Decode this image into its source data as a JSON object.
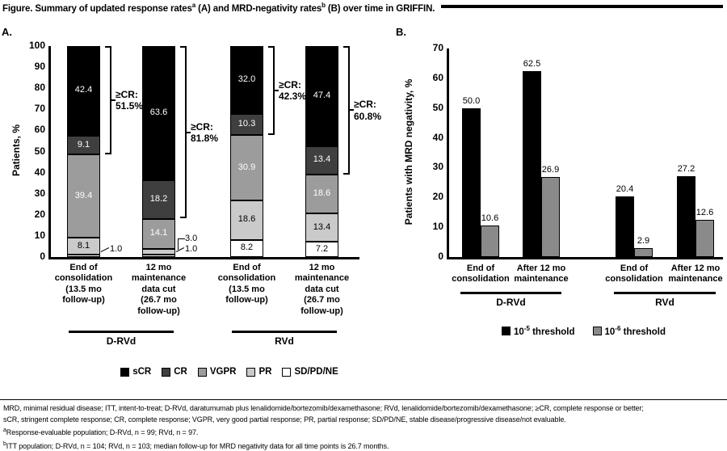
{
  "title": {
    "prefix": "Figure. Summary of updated response rates",
    "sup_a": "a",
    "mid": " (A) and MRD-negativity rates",
    "sup_b": "b",
    "suffix": " (B) over time in GRIFFIN."
  },
  "chart_data": [
    {
      "id": "A",
      "panel_label": "A.",
      "type": "bar",
      "subtype": "stacked-percent",
      "title": "Summary of updated response rates over time in GRIFFIN",
      "xlabel": "",
      "ylabel": "Patients, %",
      "ylim": [
        0,
        100
      ],
      "ytick_step": 10,
      "grid": false,
      "legend_position": "bottom",
      "categories_order_bottom_to_top": [
        "SD/PD/NE",
        "PR",
        "VGPR",
        "CR",
        "sCR"
      ],
      "legend": [
        {
          "name": "sCR",
          "color": "#000000"
        },
        {
          "name": "CR",
          "color": "#3f3f3f"
        },
        {
          "name": "VGPR",
          "color": "#9c9c9c"
        },
        {
          "name": "PR",
          "color": "#cacaca"
        },
        {
          "name": "SD/PD/NE",
          "color": "#ffffff"
        }
      ],
      "label_text_colors": {
        "sCR": "#ffffff",
        "CR": "#ffffff",
        "VGPR": "#ffffff",
        "PR": "#000000",
        "SD/PD/NE": "#000000"
      },
      "groups": [
        {
          "name": "D-RVd",
          "bars": [
            {
              "x_label_lines": [
                "End of",
                "consolidation",
                "(13.5 mo",
                "follow-up)"
              ],
              "segments": {
                "sCR": 42.4,
                "CR": 9.1,
                "VGPR": 39.4,
                "PR": 8.1,
                "SD/PD/NE": 1.0
              },
              "callout_labels": [
                {
                  "segment": "SD/PD/NE",
                  "text": "1.0"
                }
              ],
              "bracket": {
                "title": "≥CR:",
                "value": "51.5%",
                "span_pct": 51.5
              }
            },
            {
              "x_label_lines": [
                "12 mo",
                "maintenance",
                "data cut",
                "(26.7 mo",
                "follow-up)"
              ],
              "segments": {
                "sCR": 63.6,
                "CR": 18.2,
                "VGPR": 14.1,
                "PR": 3.0,
                "SD/PD/NE": 1.0
              },
              "callout_labels": [
                {
                  "segment": "PR",
                  "text": "3.0"
                },
                {
                  "segment": "SD/PD/NE",
                  "text": "1.0"
                }
              ],
              "bracket": {
                "title": "≥CR:",
                "value": "81.8%",
                "span_pct": 81.8
              }
            }
          ]
        },
        {
          "name": "RVd",
          "bars": [
            {
              "x_label_lines": [
                "End of",
                "consolidation",
                "(13.5 mo",
                "follow-up)"
              ],
              "segments": {
                "sCR": 32.0,
                "CR": 10.3,
                "VGPR": 30.9,
                "PR": 18.6,
                "SD/PD/NE": 8.2
              },
              "callout_labels": [],
              "bracket": {
                "title": "≥CR:",
                "value": "42.3%",
                "span_pct": 42.3
              }
            },
            {
              "x_label_lines": [
                "12 mo",
                "maintenance",
                "data cut",
                "(26.7 mo",
                "follow-up)"
              ],
              "segments": {
                "sCR": 47.4,
                "CR": 13.4,
                "VGPR": 18.6,
                "PR": 13.4,
                "SD/PD/NE": 7.2
              },
              "callout_labels": [],
              "bracket": {
                "title": "≥CR:",
                "value": "60.8%",
                "span_pct": 60.8
              }
            }
          ]
        }
      ]
    },
    {
      "id": "B",
      "panel_label": "B.",
      "type": "bar",
      "subtype": "grouped",
      "title": "Summary of updated MRD-negativity rates over time in GRIFFIN",
      "xlabel": "",
      "ylabel": "Patients with MRD negativity, %",
      "ylim": [
        0,
        70
      ],
      "ytick_step": 10,
      "grid": false,
      "legend_position": "bottom",
      "series": [
        {
          "name_base": "10",
          "name_exp": "-5",
          "name_rest": " threshold",
          "color": "#000000"
        },
        {
          "name_base": "10",
          "name_exp": "-6",
          "name_rest": " threshold",
          "color": "#8a8a8a"
        }
      ],
      "groups": [
        {
          "name": "D-RVd",
          "bars": [
            {
              "x_label_lines": [
                "End of",
                "consolidation"
              ],
              "values": [
                50.0,
                10.6
              ]
            },
            {
              "x_label_lines": [
                "After 12 mo",
                "maintenance"
              ],
              "values": [
                62.5,
                26.9
              ]
            }
          ]
        },
        {
          "name": "RVd",
          "bars": [
            {
              "x_label_lines": [
                "End of",
                "consolidation"
              ],
              "values": [
                20.4,
                2.9
              ]
            },
            {
              "x_label_lines": [
                "After 12 mo",
                "maintenance"
              ],
              "values": [
                27.2,
                12.6
              ]
            }
          ]
        }
      ]
    }
  ],
  "footnotes": {
    "line1": "MRD, minimal residual disease; ITT, intent-to-treat; D-RVd, daratumumab plus lenalidomide/bortezomib/dexamethasone; RVd, lenalidomide/bortezomib/dexamethasone; ≥CR, complete response or better;",
    "line2": "sCR, stringent complete response; CR, complete response; VGPR, very good partial response; PR, partial response; SD/PD/NE, stable disease/progressive disease/not evaluable.",
    "a_marker": "a",
    "a_text": "Response-evaluable population; D-RVd, n = 99; RVd, n = 97.",
    "b_marker": "b",
    "b_text": "ITT population; D-RVd, n = 104; RVd, n = 103; median follow-up for MRD negativity data for all time points is 26.7 months."
  }
}
